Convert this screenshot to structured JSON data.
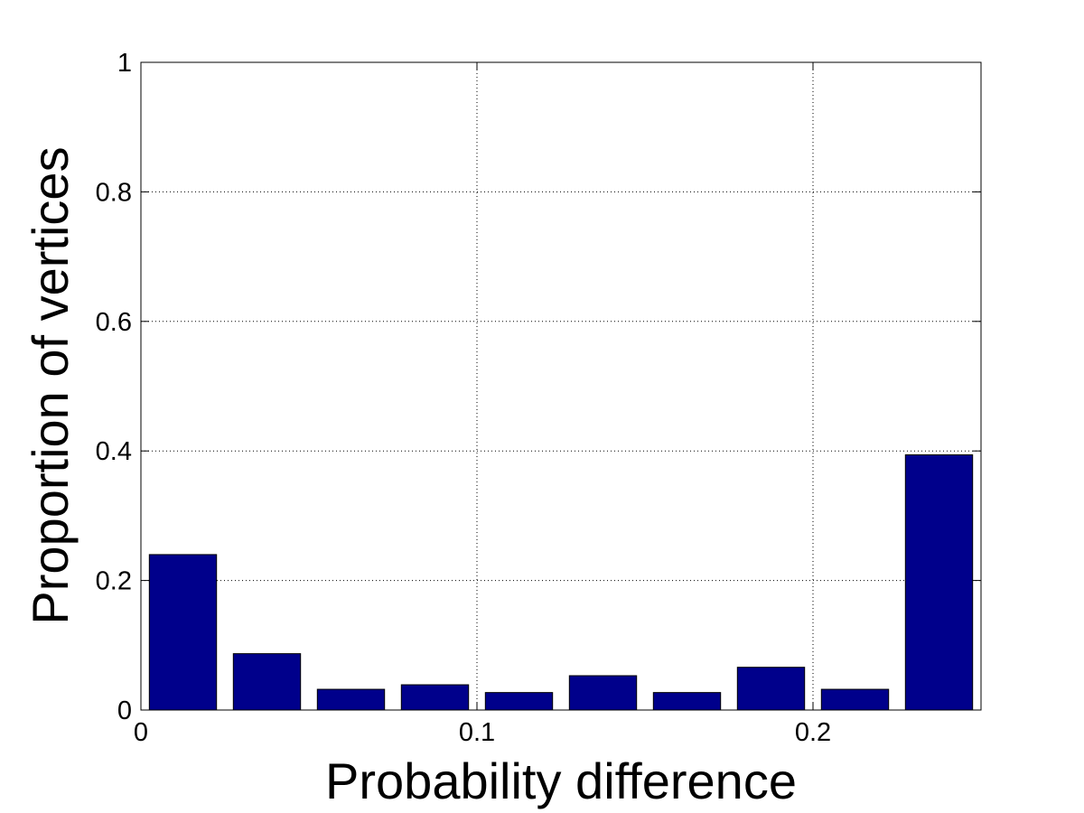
{
  "chart_data": {
    "type": "bar",
    "title": "",
    "xlabel": "Probability difference",
    "ylabel": "Proportion of vertices",
    "xlim": [
      0,
      0.25
    ],
    "ylim": [
      0,
      1
    ],
    "grid": true,
    "legend": "none",
    "bar_color": "#00008B",
    "bar_edge_color": "#000000",
    "bar_width": 0.02,
    "x": [
      0.0125,
      0.0375,
      0.0625,
      0.0875,
      0.1125,
      0.1375,
      0.1625,
      0.1875,
      0.2125,
      0.2375
    ],
    "values": [
      0.24,
      0.087,
      0.032,
      0.039,
      0.027,
      0.053,
      0.027,
      0.066,
      0.032,
      0.394
    ],
    "x_ticks": [
      {
        "value": 0,
        "label": "0"
      },
      {
        "value": 0.1,
        "label": "0.1"
      },
      {
        "value": 0.2,
        "label": "0.2"
      }
    ],
    "y_ticks": [
      {
        "value": 0,
        "label": "0"
      },
      {
        "value": 0.2,
        "label": "0.2"
      },
      {
        "value": 0.4,
        "label": "0.4"
      },
      {
        "value": 0.6,
        "label": "0.6"
      },
      {
        "value": 0.8,
        "label": "0.8"
      },
      {
        "value": 1,
        "label": "1"
      }
    ]
  }
}
